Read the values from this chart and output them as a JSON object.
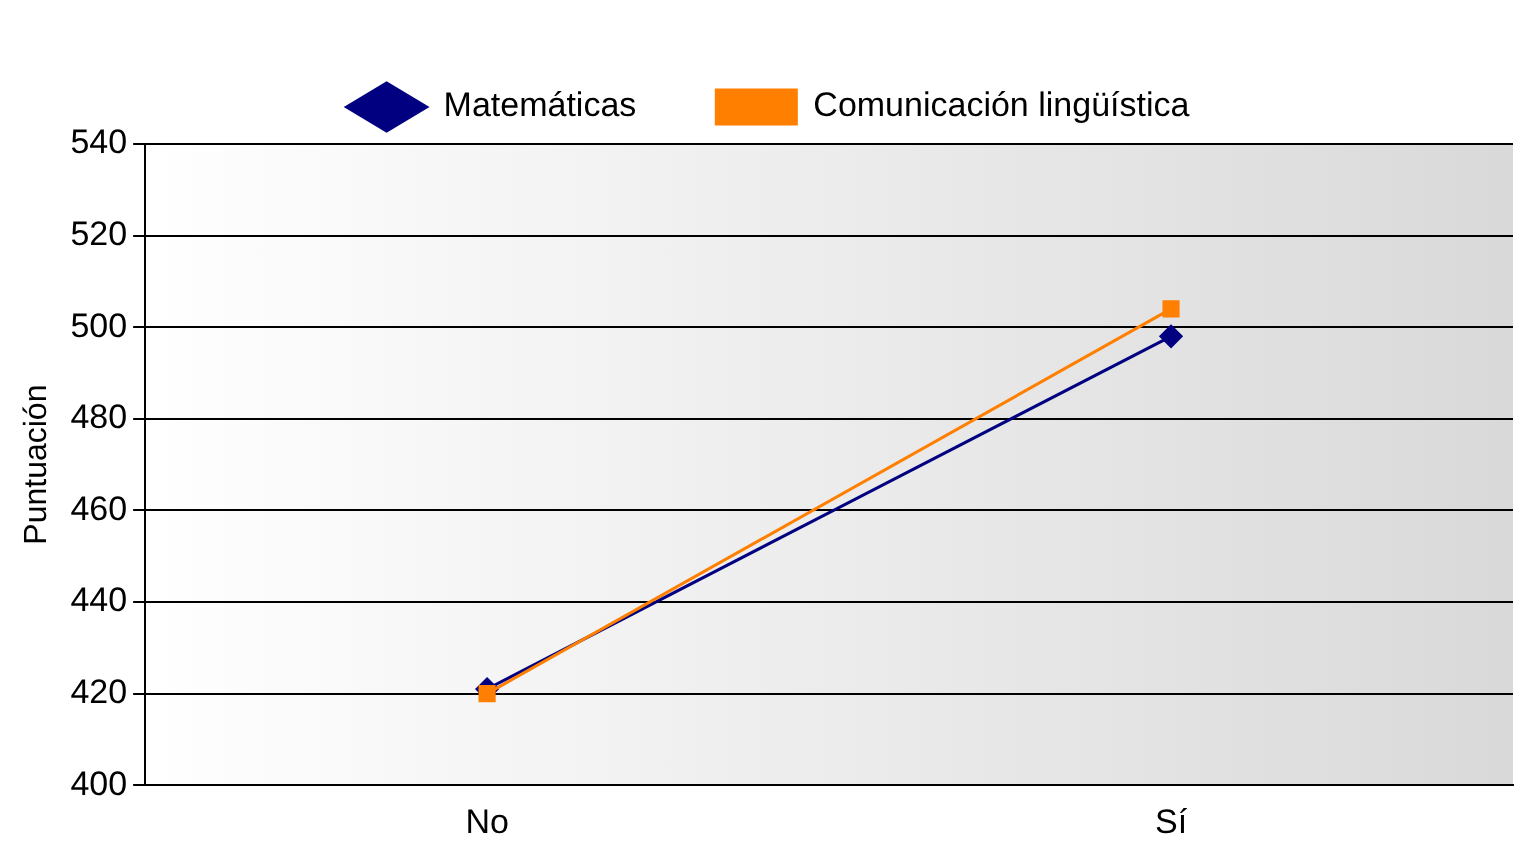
{
  "chart_data": {
    "type": "line",
    "ylabel": "Puntuación",
    "categories": [
      "No",
      "Sí"
    ],
    "series": [
      {
        "name": "Matemáticas",
        "color": "#000080",
        "values": [
          421,
          498
        ],
        "marker": "diamond"
      },
      {
        "name": "Comunicación lingüística",
        "color": "#ff7f00",
        "values": [
          420,
          504
        ],
        "marker": "square"
      }
    ],
    "ylim": [
      400,
      540
    ],
    "yticks": [
      400,
      420,
      440,
      460,
      480,
      500,
      520,
      540
    ],
    "grid": "y",
    "legend": "top"
  }
}
